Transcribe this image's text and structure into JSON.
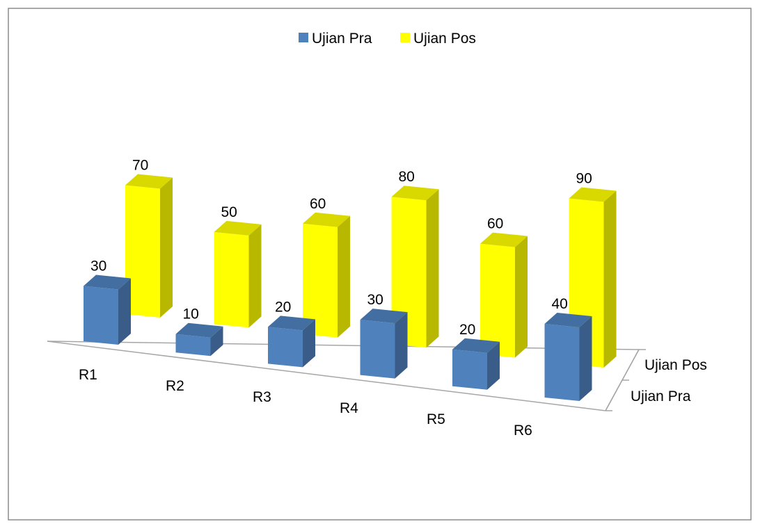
{
  "chart_data": {
    "type": "bar",
    "variant": "3d-column",
    "title": "",
    "xlabel": "",
    "ylabel": "",
    "ylim": [
      0,
      100
    ],
    "grid": false,
    "legend_position": "top",
    "categories": [
      "R1",
      "R2",
      "R3",
      "R4",
      "R5",
      "R6"
    ],
    "series": [
      {
        "name": "Ujian Pra",
        "values": [
          30,
          10,
          20,
          30,
          20,
          40
        ],
        "color": "#4F81BD"
      },
      {
        "name": "Ujian Pos",
        "values": [
          70,
          50,
          60,
          80,
          60,
          90
        ],
        "color": "#FFFF00"
      }
    ],
    "depth_axis_labels": [
      "Ujian Pos",
      "Ujian Pra"
    ],
    "data_labels": true
  }
}
